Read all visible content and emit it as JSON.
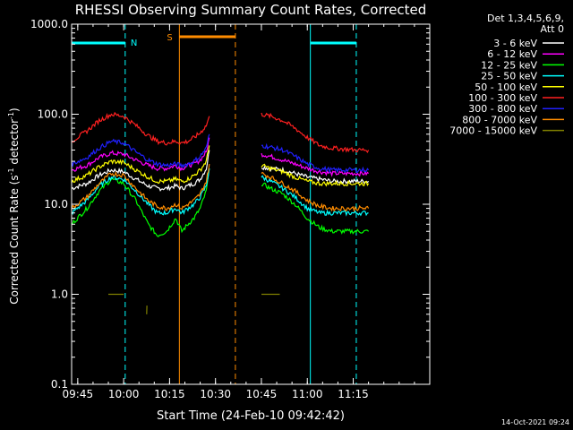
{
  "chart_data": {
    "type": "line",
    "title": "RHESSI Observing Summary Count Rates, Corrected",
    "xlabel": "Start Time (24-Feb-10 09:42:42)",
    "ylabel": "Corrected Count Rate (s⁻¹ detector⁻¹)",
    "ylabel_main": "Corrected Count Rate (s",
    "ylabel_mid": " detector",
    "ylabel_end": ")",
    "ylabel_sup": "-1",
    "xlim_min": [
      585,
      700
    ],
    "ylim": [
      0.1,
      1000
    ],
    "yscale": "log",
    "x_ticks": [
      {
        "min": 585,
        "label": "09:45"
      },
      {
        "min": 600,
        "label": "10:00"
      },
      {
        "min": 615,
        "label": "10:15"
      },
      {
        "min": 630,
        "label": "10:30"
      },
      {
        "min": 645,
        "label": "10:45"
      },
      {
        "min": 660,
        "label": "11:00"
      },
      {
        "min": 675,
        "label": "11:15"
      }
    ],
    "y_ticks": [
      {
        "value": 0.1,
        "label": "0.1"
      },
      {
        "value": 1,
        "label": "1.0"
      },
      {
        "value": 10,
        "label": "10.0"
      },
      {
        "value": 100,
        "label": "100.0"
      },
      {
        "value": 1000,
        "label": "1000.0"
      }
    ],
    "legend_header": [
      "Det 1,3,4,5,6,9,",
      "Att 0"
    ],
    "legend_placement": "right",
    "series": [
      {
        "name": "3 - 6 keV",
        "color": "#ffffff",
        "x": [
          583,
          588,
          592,
          596,
          600,
          604,
          608,
          611,
          614,
          617,
          619,
          621,
          623,
          625,
          627,
          628
        ],
        "y": [
          15,
          17,
          21,
          24,
          23,
          19,
          16,
          15,
          15,
          16,
          15,
          16,
          17,
          19,
          25,
          40
        ]
      },
      {
        "name": "3 - 6 keV",
        "color": "#ffffff",
        "x": [
          645,
          648,
          652,
          656,
          660,
          664,
          668,
          672,
          676,
          680
        ],
        "y": [
          26,
          25,
          24,
          22,
          20,
          19,
          18,
          18,
          18,
          18
        ]
      },
      {
        "name": "6 - 12 keV",
        "color": "#ff00ff",
        "x": [
          583,
          588,
          592,
          596,
          600,
          604,
          608,
          611,
          614,
          617,
          619,
          621,
          623,
          625,
          627,
          628
        ],
        "y": [
          24,
          27,
          33,
          37,
          36,
          31,
          27,
          25,
          25,
          27,
          25,
          27,
          28,
          31,
          38,
          55
        ]
      },
      {
        "name": "6 - 12 keV",
        "color": "#ff00ff",
        "x": [
          645,
          648,
          652,
          656,
          660,
          664,
          668,
          672,
          676,
          680
        ],
        "y": [
          36,
          34,
          31,
          28,
          25,
          23,
          22,
          22,
          22,
          22
        ]
      },
      {
        "name": "12 - 25 keV",
        "color": "#00ff00",
        "x": [
          583,
          588,
          592,
          596,
          600,
          604,
          608,
          611,
          614,
          617,
          619,
          621,
          623,
          625,
          627,
          628
        ],
        "y": [
          6,
          9,
          14,
          19,
          17,
          11,
          6,
          4.5,
          5,
          7,
          5,
          6,
          7,
          9,
          14,
          25
        ]
      },
      {
        "name": "12 - 25 keV",
        "color": "#00ff00",
        "x": [
          645,
          648,
          652,
          656,
          660,
          664,
          668,
          672,
          676,
          680
        ],
        "y": [
          17,
          15,
          13,
          10,
          7,
          5.5,
          5,
          5,
          5,
          5
        ]
      },
      {
        "name": "25 - 50 keV",
        "color": "#00ffff",
        "x": [
          583,
          588,
          592,
          596,
          600,
          604,
          608,
          611,
          614,
          617,
          619,
          621,
          623,
          625,
          627,
          628
        ],
        "y": [
          8,
          11,
          16,
          20,
          19,
          14,
          10,
          8,
          8,
          9,
          8,
          9,
          10,
          12,
          16,
          25
        ]
      },
      {
        "name": "25 - 50 keV",
        "color": "#00ffff",
        "x": [
          645,
          648,
          652,
          656,
          660,
          664,
          668,
          672,
          676,
          680
        ],
        "y": [
          20,
          18,
          15,
          12,
          9,
          8,
          8,
          8,
          8,
          8
        ]
      },
      {
        "name": "50 - 100 keV",
        "color": "#ffff00",
        "x": [
          583,
          588,
          592,
          596,
          600,
          604,
          608,
          611,
          614,
          617,
          619,
          621,
          623,
          625,
          627,
          628
        ],
        "y": [
          18,
          21,
          26,
          30,
          29,
          24,
          20,
          18,
          18,
          19,
          18,
          19,
          21,
          24,
          30,
          45
        ]
      },
      {
        "name": "50 - 100 keV",
        "color": "#ffff00",
        "x": [
          645,
          648,
          652,
          656,
          660,
          664,
          668,
          672,
          676,
          680
        ],
        "y": [
          27,
          25,
          23,
          20,
          18,
          17,
          17,
          17,
          17,
          17
        ]
      },
      {
        "name": "100 - 300 keV",
        "color": "#ff2020",
        "x": [
          583,
          588,
          592,
          596,
          600,
          604,
          608,
          611,
          614,
          617,
          619,
          621,
          623,
          625,
          627,
          628
        ],
        "y": [
          50,
          65,
          85,
          100,
          95,
          75,
          58,
          50,
          48,
          50,
          48,
          50,
          55,
          62,
          75,
          95
        ]
      },
      {
        "name": "100 - 300 keV",
        "color": "#ff2020",
        "x": [
          645,
          648,
          652,
          656,
          660,
          664,
          668,
          672,
          676,
          680
        ],
        "y": [
          100,
          95,
          85,
          70,
          55,
          45,
          42,
          41,
          40,
          40
        ]
      },
      {
        "name": "300 - 800 keV",
        "color": "#2020ff",
        "x": [
          583,
          588,
          592,
          596,
          600,
          604,
          608,
          611,
          614,
          617,
          619,
          621,
          623,
          625,
          627,
          628
        ],
        "y": [
          28,
          33,
          42,
          50,
          48,
          38,
          31,
          28,
          27,
          28,
          27,
          28,
          30,
          34,
          42,
          60
        ]
      },
      {
        "name": "300 - 800 keV",
        "color": "#2020ff",
        "x": [
          645,
          648,
          652,
          656,
          660,
          664,
          668,
          672,
          676,
          680
        ],
        "y": [
          45,
          43,
          40,
          34,
          28,
          25,
          24,
          24,
          24,
          24
        ]
      },
      {
        "name": "800 - 7000 keV",
        "color": "#ff8c00",
        "x": [
          583,
          588,
          592,
          596,
          600,
          604,
          608,
          611,
          614,
          617,
          619,
          621,
          623,
          625,
          627,
          628
        ],
        "y": [
          9,
          12,
          17,
          22,
          21,
          15,
          11,
          9.5,
          9,
          10,
          9,
          10,
          11,
          13,
          18,
          28
        ]
      },
      {
        "name": "800 - 7000 keV",
        "color": "#ff8c00",
        "x": [
          645,
          648,
          652,
          656,
          660,
          664,
          668,
          672,
          676,
          680
        ],
        "y": [
          22,
          20,
          17,
          14,
          11,
          9.5,
          9,
          9,
          9,
          9
        ]
      },
      {
        "name": "7000 - 15000 keV",
        "color": "#808000",
        "x": [
          595,
          600
        ],
        "y": [
          1,
          1
        ]
      },
      {
        "name": "7000 - 15000 keV",
        "color": "#808000",
        "x": [
          645,
          651
        ],
        "y": [
          1,
          1
        ]
      },
      {
        "name": "7000 - 15000 keV",
        "color": "#808000",
        "x": [
          607.5,
          607.6
        ],
        "y": [
          0.6,
          0.75
        ]
      }
    ],
    "legend_order": [
      {
        "label": "3 - 6 keV",
        "color": "#ffffff"
      },
      {
        "label": "6 - 12 keV",
        "color": "#ff00ff"
      },
      {
        "label": "12 - 25 keV",
        "color": "#00ff00"
      },
      {
        "label": "25 - 50 keV",
        "color": "#00ffff"
      },
      {
        "label": "50 - 100 keV",
        "color": "#ffff00"
      },
      {
        "label": "100 - 300 keV",
        "color": "#ff2020"
      },
      {
        "label": "300 - 800 keV",
        "color": "#2020ff"
      },
      {
        "label": "800 - 7000 keV",
        "color": "#ff8c00"
      },
      {
        "label": "7000 - 15000 keV",
        "color": "#808000"
      }
    ],
    "annotations": {
      "night_label": "N",
      "saa_label": "S",
      "night_color": "#00ffff",
      "saa_color": "#ff8c00",
      "night_intervals": [
        [
          583,
          600.5
        ],
        [
          661,
          676
        ]
      ],
      "saa_interval": [
        618.2,
        636.5
      ],
      "data_gap": [
        628.5,
        643.7
      ]
    },
    "grid": false,
    "footer": "14-Oct-2021 09:24"
  }
}
